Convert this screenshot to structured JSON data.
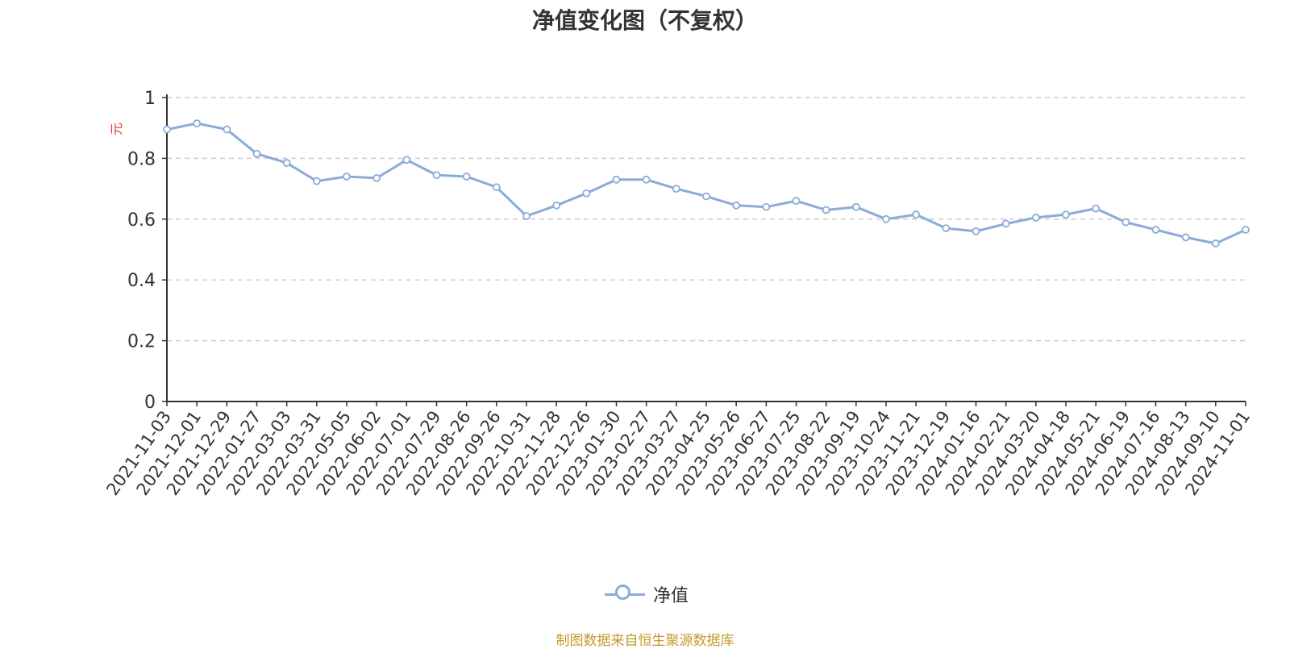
{
  "chart_data": {
    "type": "line",
    "title": "净值变化图（不复权）",
    "ylabel": "元",
    "ylim": [
      0,
      1
    ],
    "yticks": [
      "0",
      "0.2",
      "0.4",
      "0.6",
      "0.8",
      "1"
    ],
    "ytick_values": [
      0,
      0.2,
      0.4,
      0.6,
      0.8,
      1
    ],
    "grid": true,
    "legend_position": "bottom-center",
    "categories": [
      "2021-11-03",
      "2021-12-01",
      "2021-12-29",
      "2022-01-27",
      "2022-03-03",
      "2022-03-31",
      "2022-05-05",
      "2022-06-02",
      "2022-07-01",
      "2022-07-29",
      "2022-08-26",
      "2022-09-26",
      "2022-10-31",
      "2022-11-28",
      "2022-12-26",
      "2023-01-30",
      "2023-02-27",
      "2023-03-27",
      "2023-04-25",
      "2023-05-26",
      "2023-06-27",
      "2023-07-25",
      "2023-08-22",
      "2023-09-19",
      "2023-10-24",
      "2023-11-21",
      "2023-12-19",
      "2024-01-16",
      "2024-02-21",
      "2024-03-20",
      "2024-04-18",
      "2024-05-21",
      "2024-06-19",
      "2024-07-16",
      "2024-08-13",
      "2024-09-10",
      "2024-11-01"
    ],
    "series": [
      {
        "name": "净值",
        "color": "#8bacd7",
        "values": [
          0.895,
          0.915,
          0.895,
          0.815,
          0.785,
          0.725,
          0.74,
          0.735,
          0.795,
          0.745,
          0.74,
          0.705,
          0.61,
          0.645,
          0.685,
          0.73,
          0.73,
          0.7,
          0.675,
          0.645,
          0.64,
          0.66,
          0.63,
          0.64,
          0.6,
          0.615,
          0.57,
          0.56,
          0.585,
          0.605,
          0.615,
          0.635,
          0.59,
          0.565,
          0.54,
          0.52,
          0.565
        ]
      }
    ]
  },
  "legend": {
    "label": "净值"
  },
  "source": "制图数据来自恒生聚源数据库"
}
